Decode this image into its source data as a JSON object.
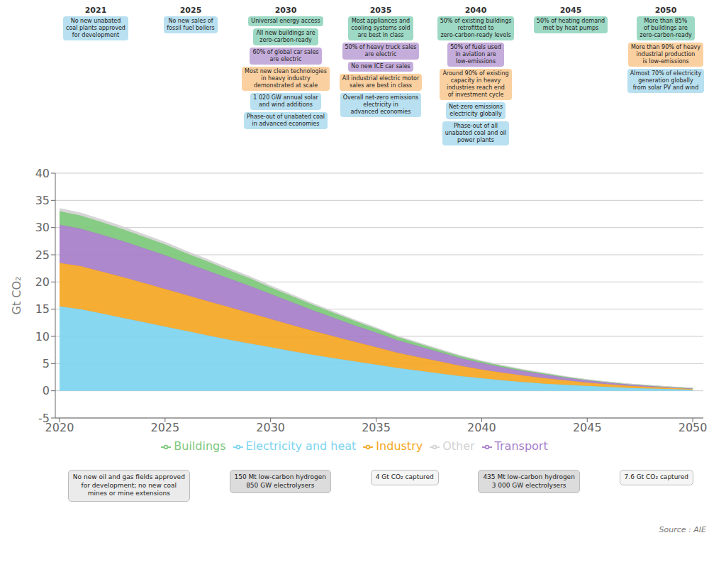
{
  "chart_data": {
    "type": "area",
    "stacked": true,
    "x": [
      2020,
      2021,
      2022,
      2023,
      2024,
      2025,
      2026,
      2027,
      2028,
      2029,
      2030,
      2031,
      2032,
      2033,
      2034,
      2035,
      2036,
      2037,
      2038,
      2039,
      2040,
      2041,
      2042,
      2043,
      2044,
      2045,
      2046,
      2047,
      2048,
      2049,
      2050
    ],
    "series": [
      {
        "name": "Electricity and heat",
        "color": "#7DD4F0",
        "values": [
          15.5,
          15.0,
          14.2,
          13.4,
          12.6,
          11.8,
          11.0,
          10.2,
          9.4,
          8.7,
          8.0,
          7.3,
          6.6,
          6.0,
          5.4,
          4.8,
          4.2,
          3.7,
          3.2,
          2.7,
          2.3,
          1.9,
          1.6,
          1.3,
          1.1,
          0.9,
          0.7,
          0.5,
          0.4,
          0.3,
          0.2
        ]
      },
      {
        "name": "Industry",
        "color": "#F5A623",
        "values": [
          8.0,
          7.9,
          7.7,
          7.5,
          7.2,
          6.9,
          6.6,
          6.3,
          6.0,
          5.6,
          5.2,
          4.8,
          4.4,
          4.0,
          3.6,
          3.2,
          2.8,
          2.5,
          2.2,
          1.9,
          1.6,
          1.4,
          1.2,
          1.0,
          0.8,
          0.6,
          0.5,
          0.4,
          0.3,
          0.2,
          0.15
        ]
      },
      {
        "name": "Transport",
        "color": "#A67EC8",
        "values": [
          7.0,
          6.9,
          6.8,
          6.6,
          6.4,
          6.2,
          5.9,
          5.6,
          5.3,
          5.0,
          4.6,
          4.2,
          3.8,
          3.4,
          3.0,
          2.7,
          2.3,
          2.0,
          1.7,
          1.4,
          1.2,
          1.0,
          0.8,
          0.7,
          0.5,
          0.4,
          0.3,
          0.25,
          0.2,
          0.15,
          0.1
        ]
      },
      {
        "name": "Buildings",
        "color": "#7DC87A",
        "values": [
          2.5,
          2.4,
          2.3,
          2.2,
          2.1,
          2.0,
          1.8,
          1.7,
          1.5,
          1.4,
          1.2,
          1.1,
          1.0,
          0.9,
          0.8,
          0.7,
          0.6,
          0.5,
          0.4,
          0.35,
          0.3,
          0.25,
          0.2,
          0.18,
          0.15,
          0.12,
          0.1,
          0.08,
          0.06,
          0.05,
          0.04
        ]
      },
      {
        "name": "Other",
        "color": "#D3D3D3",
        "values": [
          0.5,
          0.48,
          0.46,
          0.44,
          0.42,
          0.4,
          0.38,
          0.36,
          0.34,
          0.32,
          0.3,
          0.28,
          0.26,
          0.24,
          0.22,
          0.2,
          0.18,
          0.16,
          0.14,
          0.12,
          0.1,
          0.09,
          0.08,
          0.07,
          0.06,
          0.05,
          0.04,
          0.03,
          0.03,
          0.02,
          0.02
        ]
      }
    ],
    "ylabel": "Gt CO₂",
    "xlim": [
      2019.8,
      2050.5
    ],
    "xticks": [
      2020,
      2025,
      2030,
      2035,
      2040,
      2045,
      2050
    ],
    "ylim": [
      -5,
      40
    ],
    "yticks": [
      -5,
      0,
      5,
      10,
      15,
      20,
      25,
      30,
      35,
      40
    ],
    "grid": true,
    "legend": "bottom",
    "annotations": [
      {
        "label": "2021",
        "notes": [
          {
            "text": "No new unabated\ncoal plants approved\nfor development",
            "color": "#B8E0F0"
          }
        ]
      },
      {
        "label": "2025",
        "notes": [
          {
            "text": "No new sales of\nfossil fuel boilers",
            "color": "#B8E0F0"
          }
        ]
      },
      {
        "label": "2030",
        "notes": [
          {
            "text": "Universal energy access",
            "color": "#9DD9C5"
          },
          {
            "text": "All new buildings are\nzero-carbon-ready",
            "color": "#9DD9C5"
          },
          {
            "text": "60% of global car sales\nare electric",
            "color": "#C5ADDB"
          },
          {
            "text": "Most new clean technologies\nin heavy industry\ndemonstrated at scale",
            "color": "#FAD0A0"
          },
          {
            "text": "1 020 GW annual solar\nand wind additions",
            "color": "#B8E0F0"
          },
          {
            "text": "Phase-out of unabated coal\nin advanced economies",
            "color": "#B8E0F0"
          }
        ]
      },
      {
        "label": "2035",
        "notes": [
          {
            "text": "Most appliances and\ncooling systems sold\nare best in class",
            "color": "#9DD9C5"
          },
          {
            "text": "50% of heavy truck sales\nare electric",
            "color": "#C5ADDB"
          },
          {
            "text": "No new ICE car sales",
            "color": "#C5ADDB"
          },
          {
            "text": "All industrial electric motor\nsales are best in class",
            "color": "#FAD0A0"
          },
          {
            "text": "Overall net-zero emissions\nelectricity in\nadvanced economies",
            "color": "#B8E0F0"
          }
        ]
      },
      {
        "label": "2040",
        "notes": [
          {
            "text": "50% of existing buildings\nretrofitted to\nzero-carbon-ready levels",
            "color": "#9DD9C5"
          },
          {
            "text": "50% of fuels used\nin aviation are\nlow-emissions",
            "color": "#C5ADDB"
          },
          {
            "text": "Around 90% of existing\ncapacity in heavy\nindustries reach end\nof investment cycle",
            "color": "#FAD0A0"
          },
          {
            "text": "Net-zero emissions\nelectricity globally",
            "color": "#B8E0F0"
          },
          {
            "text": "Phase-out of all\nunabated coal and oil\npower plants",
            "color": "#B8E0F0"
          }
        ]
      },
      {
        "label": "2045",
        "notes": [
          {
            "text": "50% of heating demand\nmet by heat pumps",
            "color": "#9DD9C5"
          }
        ]
      },
      {
        "label": "2050",
        "notes": [
          {
            "text": "More than 85%\nof buildings are\nzero-carbon-ready",
            "color": "#9DD9C5"
          },
          {
            "text": "More than 90% of heavy\nindustrial production\nis low-emissions",
            "color": "#FAD0A0"
          },
          {
            "text": "Almost 70% of electricity\ngeneration globally\nfrom solar PV and wind",
            "color": "#B8E0F0"
          }
        ]
      }
    ],
    "below_annotations": [
      {
        "text": "No new oil and gas fields approved\nfor development; no new coal\nmines or mine extensions",
        "color": "#EBEBEB"
      },
      {
        "text": "150 Mt low-carbon hydrogen\n850 GW electrolysers",
        "color": "#DCDCDC"
      },
      {
        "text": "4 Gt CO₂ captured",
        "color": "#F5F5F5"
      },
      {
        "text": "435 Mt low-carbon hydrogen\n3 000 GW electrolysers",
        "color": "#DCDCDC"
      },
      {
        "text": "7.6 Gt CO₂ captured",
        "color": "#F5F5F5"
      }
    ],
    "source": "Source : AIE"
  }
}
